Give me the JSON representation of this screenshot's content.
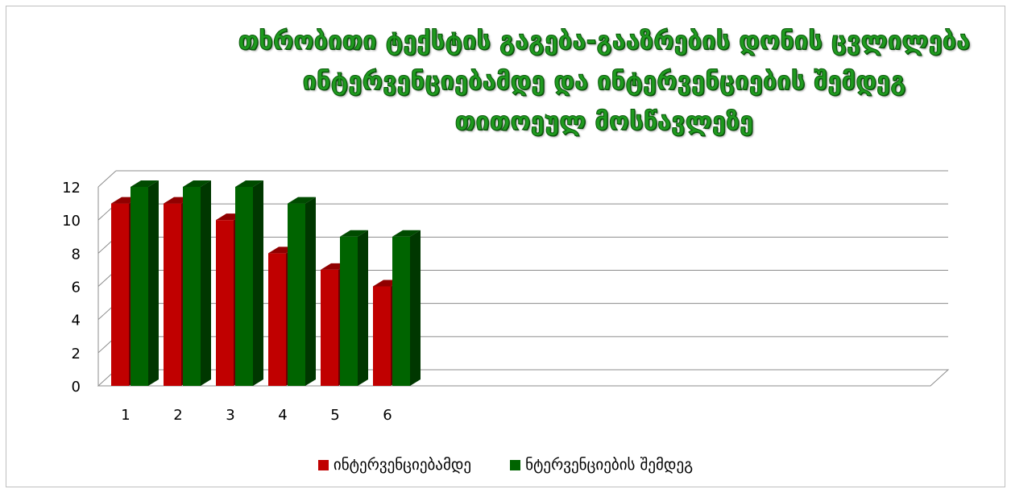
{
  "chart_data": {
    "type": "bar",
    "title_lines": [
      "თხრობითი ტექსტის გაგება-გააზრების დონის ცვლილება",
      "ინტერვენციებამდე და ინტერვენციების შემდეგ",
      "თითოეულ მოსწავლეზე"
    ],
    "categories": [
      "1",
      "2",
      "3",
      "4",
      "5",
      "6"
    ],
    "series": [
      {
        "name": "ინტერვენციებამდე",
        "values": [
          11,
          11,
          10,
          8,
          7,
          6
        ],
        "color": "#c00000"
      },
      {
        "name": "ნტერვენციების შემდეგ",
        "values": [
          12,
          12,
          12,
          11,
          9,
          9
        ],
        "color": "#006400"
      }
    ],
    "yticks": [
      0,
      2,
      4,
      6,
      8,
      10,
      12
    ],
    "ylim": [
      0,
      12
    ],
    "grid": true,
    "legend_position": "bottom",
    "style": "3d-clustered-column"
  }
}
